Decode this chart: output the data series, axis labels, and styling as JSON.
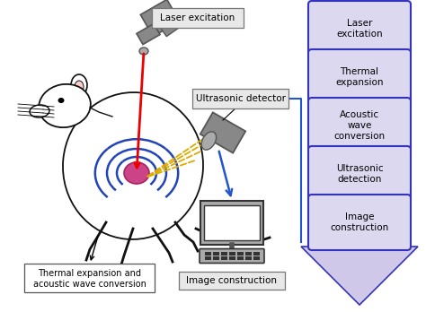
{
  "background_color": "#ffffff",
  "flow_boxes": [
    "Laser\nexcitation",
    "Thermal\nexpansion",
    "Acoustic\nwave\nconversion",
    "Ultrasonic\ndetection",
    "Image\nconstruction"
  ],
  "box_fill_color": "#dcd8ef",
  "box_edge_color": "#3333bb",
  "arrow_fill_color": "#d0c8e8",
  "arrow_edge_color": "#3333bb",
  "label_box_fill": "#e8e8e8",
  "label_box_edge": "#777777",
  "red_color": "#ee0000",
  "blue_arrow_color": "#2255cc",
  "yellow_color": "#ddaa00",
  "gray_device": "#888888",
  "gray_device_dark": "#555555",
  "gray_device_light": "#aaaaaa",
  "black": "#111111",
  "tumor_color": "#cc4488",
  "wave_color": "#2244bb",
  "laser_excitation_label": "Laser excitation",
  "ultrasonic_detector_label": "Ultrasonic detector",
  "thermal_label_line1": "Thermal expansion and",
  "thermal_label_line2": "acoustic wave conversion",
  "image_construction_label": "Image construction"
}
